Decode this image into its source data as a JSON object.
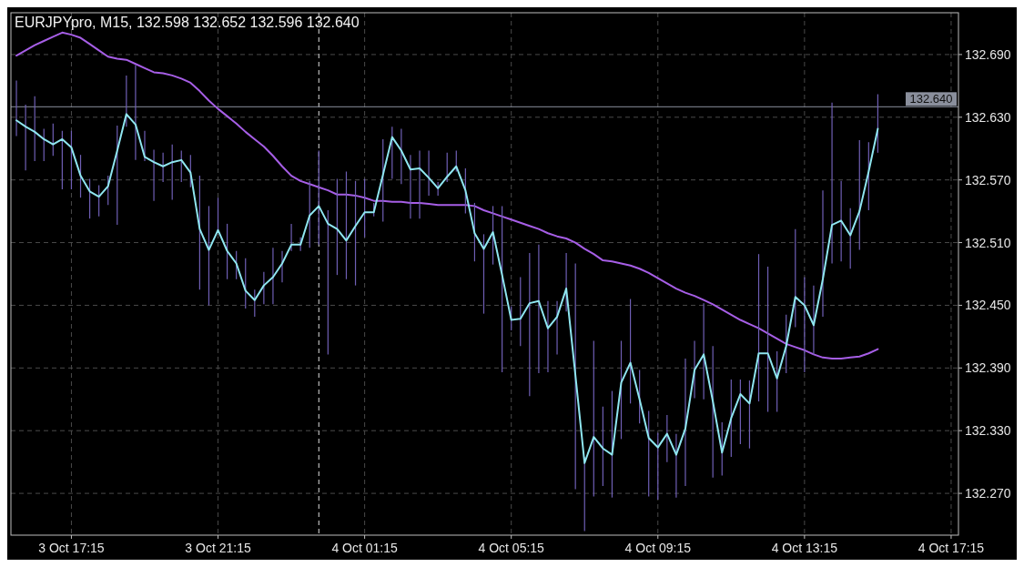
{
  "chart_data": {
    "type": "line",
    "title": "EURJPYpro, M15, 132.598 132.652 132.596 132.640",
    "grid": true,
    "categories": [
      null,
      null,
      null,
      null,
      null,
      null,
      "3 Oct 17:15",
      null,
      null,
      null,
      null,
      null,
      null,
      null,
      null,
      null,
      null,
      null,
      null,
      null,
      null,
      null,
      "3 Oct 21:15",
      null,
      null,
      null,
      null,
      null,
      null,
      null,
      null,
      null,
      null,
      null,
      null,
      null,
      null,
      null,
      "4 Oct 01:15",
      null,
      null,
      null,
      null,
      null,
      null,
      null,
      null,
      null,
      null,
      null,
      null,
      null,
      null,
      null,
      "4 Oct 05:15",
      null,
      null,
      null,
      null,
      null,
      null,
      null,
      null,
      null,
      null,
      null,
      null,
      null,
      null,
      null,
      "4 Oct 09:15",
      null,
      null,
      null,
      null,
      null,
      null,
      null,
      null,
      null,
      null,
      null,
      null,
      null,
      null,
      null,
      "4 Oct 13:15",
      null,
      null,
      null,
      null,
      null,
      null,
      null,
      null,
      null,
      null,
      null,
      null,
      null,
      null,
      null,
      "4 Oct 17:15"
    ],
    "ylim": [
      132.23,
      132.73
    ],
    "yticks": [
      {
        "value": 132.27,
        "label": "132.270"
      },
      {
        "value": 132.33,
        "label": "132.330"
      },
      {
        "value": 132.39,
        "label": "132.390"
      },
      {
        "value": 132.45,
        "label": "132.450"
      },
      {
        "value": 132.51,
        "label": "132.510"
      },
      {
        "value": 132.57,
        "label": "132.570"
      },
      {
        "value": 132.63,
        "label": "132.630"
      },
      {
        "value": 132.69,
        "label": "132.690"
      }
    ],
    "ref_lines": [
      {
        "axis": "y",
        "value": 132.64,
        "label": "132.640",
        "color": "#8a8f9c"
      }
    ],
    "series": [
      {
        "type": "line",
        "color": "#a65ee6",
        "values": [
          132.689,
          132.694,
          132.699,
          132.703,
          132.707,
          132.711,
          132.709,
          132.706,
          132.7,
          132.694,
          132.688,
          132.686,
          132.685,
          132.681,
          132.677,
          132.673,
          132.672,
          132.67,
          132.667,
          132.663,
          132.655,
          132.646,
          132.638,
          132.631,
          132.624,
          132.616,
          132.609,
          132.602,
          132.593,
          132.583,
          132.574,
          132.569,
          132.566,
          132.563,
          132.56,
          132.556,
          132.556,
          132.555,
          132.553,
          132.55,
          132.55,
          132.549,
          132.549,
          132.548,
          132.548,
          132.547,
          132.546,
          132.546,
          132.546,
          132.546,
          132.545,
          132.541,
          132.538,
          132.535,
          132.532,
          132.529,
          132.526,
          132.523,
          132.519,
          132.516,
          132.514,
          132.51,
          132.504,
          132.499,
          132.493,
          132.492,
          132.49,
          132.488,
          132.485,
          132.481,
          132.476,
          132.471,
          132.466,
          132.462,
          132.459,
          132.455,
          132.451,
          132.446,
          132.441,
          132.436,
          132.432,
          132.428,
          132.423,
          132.418,
          132.413,
          132.41,
          132.407,
          132.403,
          132.4,
          132.399,
          132.399,
          132.4,
          132.401,
          132.404,
          132.408,
          null,
          null,
          null,
          null,
          null,
          null,
          null,
          null
        ]
      },
      {
        "type": "line",
        "color": "#8fe6f0",
        "values": [
          132.627,
          132.621,
          132.616,
          132.609,
          132.604,
          132.609,
          132.601,
          132.574,
          132.559,
          132.554,
          132.564,
          132.598,
          132.633,
          132.623,
          132.592,
          132.587,
          132.583,
          132.587,
          132.589,
          132.577,
          132.523,
          132.503,
          132.522,
          132.502,
          132.49,
          132.464,
          132.455,
          132.469,
          132.477,
          132.49,
          132.508,
          132.508,
          132.536,
          132.545,
          132.528,
          132.523,
          132.512,
          132.526,
          132.539,
          132.539,
          132.575,
          132.611,
          132.598,
          132.58,
          132.581,
          132.572,
          132.562,
          132.573,
          132.583,
          132.56,
          132.519,
          132.504,
          132.52,
          132.479,
          132.436,
          132.437,
          132.452,
          132.454,
          132.428,
          132.439,
          132.466,
          132.383,
          132.299,
          132.324,
          132.313,
          132.307,
          132.376,
          132.395,
          132.36,
          132.323,
          132.314,
          132.327,
          132.307,
          132.332,
          132.388,
          132.403,
          132.358,
          132.309,
          132.342,
          132.365,
          132.356,
          132.404,
          132.404,
          132.38,
          132.411,
          132.458,
          132.45,
          132.431,
          132.475,
          132.527,
          132.531,
          132.517,
          132.54,
          132.578,
          132.619,
          null,
          null,
          null,
          null,
          null,
          null,
          null,
          null
        ],
        "errors": [
          [
            132.612,
            132.665
          ],
          [
            132.579,
            132.642
          ],
          [
            132.588,
            132.65
          ],
          [
            132.588,
            132.619
          ],
          [
            132.593,
            132.624
          ],
          [
            132.561,
            132.617
          ],
          [
            132.561,
            132.617
          ],
          [
            132.553,
            132.594
          ],
          [
            132.533,
            132.571
          ],
          [
            132.535,
            132.565
          ],
          [
            132.546,
            132.574
          ],
          [
            132.527,
            132.622
          ],
          [
            132.621,
            132.67
          ],
          [
            132.589,
            132.68
          ],
          [
            132.588,
            132.617
          ],
          [
            132.55,
            132.599
          ],
          [
            132.568,
            132.596
          ],
          [
            132.551,
            132.604
          ],
          [
            132.568,
            132.598
          ],
          [
            132.563,
            132.594
          ],
          [
            132.465,
            132.574
          ],
          [
            132.45,
            132.545
          ],
          [
            132.522,
            132.553
          ],
          [
            132.475,
            132.528
          ],
          [
            132.475,
            132.502
          ],
          [
            132.447,
            132.495
          ],
          [
            132.439,
            132.465
          ],
          [
            132.451,
            132.482
          ],
          [
            132.451,
            132.505
          ],
          [
            132.472,
            132.502
          ],
          [
            132.502,
            132.528
          ],
          [
            132.502,
            132.515
          ],
          [
            132.505,
            132.569
          ],
          [
            132.508,
            132.598
          ],
          [
            132.403,
            132.541
          ],
          [
            132.479,
            132.571
          ],
          [
            132.475,
            132.578
          ],
          [
            132.469,
            132.569
          ],
          [
            132.515,
            132.571
          ],
          [
            132.535,
            132.548
          ],
          [
            132.53,
            132.609
          ],
          [
            132.571,
            132.621
          ],
          [
            132.566,
            132.619
          ],
          [
            132.533,
            132.594
          ],
          [
            132.533,
            132.598
          ],
          [
            132.555,
            132.598
          ],
          [
            132.555,
            132.568
          ],
          [
            132.568,
            132.596
          ],
          [
            132.578,
            132.598
          ],
          [
            132.538,
            132.581
          ],
          [
            132.492,
            132.548
          ],
          [
            132.442,
            132.518
          ],
          [
            132.489,
            132.545
          ],
          [
            132.386,
            132.545
          ],
          [
            132.426,
            132.449
          ],
          [
            132.411,
            132.477
          ],
          [
            132.363,
            132.5
          ],
          [
            132.385,
            132.508
          ],
          [
            132.386,
            132.454
          ],
          [
            132.403,
            132.454
          ],
          [
            132.444,
            132.5
          ],
          [
            132.274,
            132.49
          ],
          [
            132.234,
            132.305
          ],
          [
            132.267,
            132.416
          ],
          [
            132.277,
            132.353
          ],
          [
            132.266,
            132.368
          ],
          [
            132.322,
            132.416
          ],
          [
            132.356,
            132.456
          ],
          [
            132.337,
            132.388
          ],
          [
            132.267,
            132.349
          ],
          [
            132.264,
            132.328
          ],
          [
            132.3,
            132.345
          ],
          [
            132.266,
            132.327
          ],
          [
            132.277,
            132.399
          ],
          [
            132.361,
            132.416
          ],
          [
            132.36,
            132.452
          ],
          [
            132.285,
            132.411
          ],
          [
            132.287,
            132.338
          ],
          [
            132.305,
            132.379
          ],
          [
            132.317,
            132.379
          ],
          [
            132.313,
            132.378
          ],
          [
            132.358,
            132.499
          ],
          [
            132.348,
            132.487
          ],
          [
            132.348,
            132.406
          ],
          [
            132.385,
            132.441
          ],
          [
            132.429,
            132.523
          ],
          [
            132.386,
            132.477
          ],
          [
            132.403,
            132.469
          ],
          [
            132.439,
            132.56
          ],
          [
            132.49,
            132.644
          ],
          [
            132.492,
            132.569
          ],
          [
            132.485,
            132.543
          ],
          [
            132.503,
            132.608
          ],
          [
            132.541,
            132.606
          ],
          [
            132.596,
            132.652
          ],
          null,
          null,
          null,
          null,
          null,
          null,
          null,
          null
        ]
      }
    ]
  }
}
